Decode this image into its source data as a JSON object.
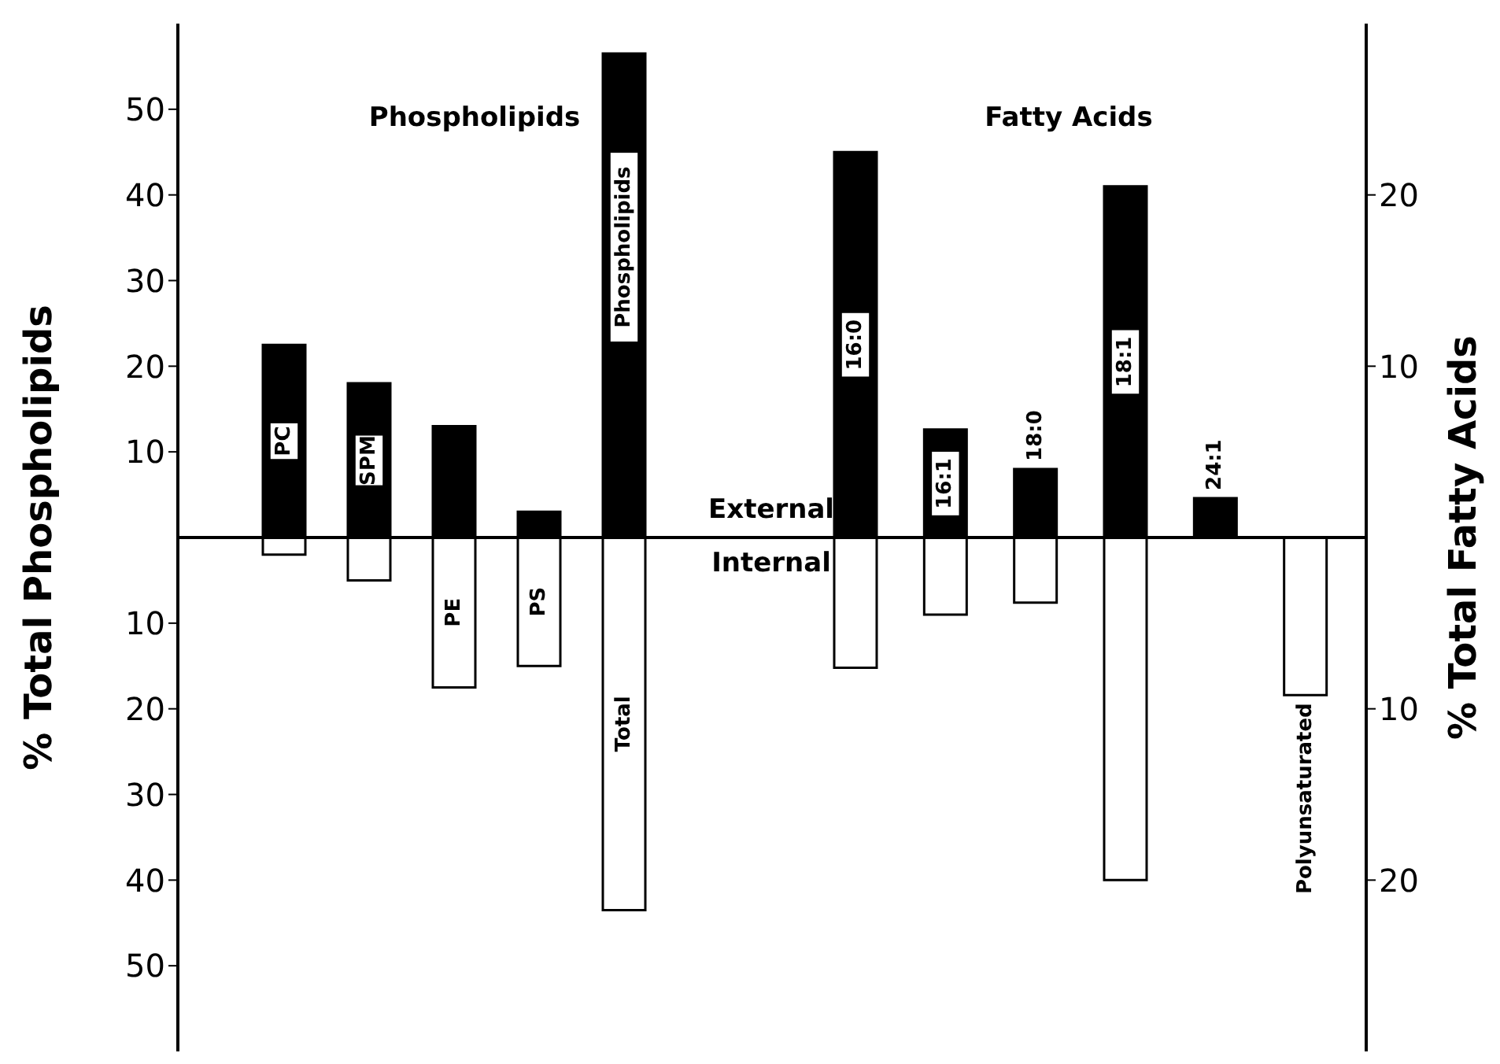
{
  "chart_data": [
    {
      "type": "bar",
      "title": "Phospholipids",
      "ylabel": "% Total Phospholipids",
      "categories": [
        "PC",
        "SPM",
        "PE",
        "PS",
        "Total"
      ],
      "stacked": true,
      "ylim": [
        -60,
        60
      ],
      "yticks": [
        {
          "value": -50,
          "label": "50"
        },
        {
          "value": -40,
          "label": "40"
        },
        {
          "value": -30,
          "label": "30"
        },
        {
          "value": -20,
          "label": "20"
        },
        {
          "value": -10,
          "label": "10"
        },
        10,
        20,
        30,
        40,
        50
      ],
      "series": [
        {
          "name": "External",
          "color": "#000000",
          "values": [
            22.5,
            18,
            13,
            3,
            56.5
          ]
        },
        {
          "name": "Internal",
          "color": "#ffffff",
          "values": [
            -2,
            -5,
            -17.5,
            -15,
            -43.5
          ]
        }
      ],
      "annotations": [
        "Phospholipids"
      ],
      "ref_lines": [
        {
          "axis": "y",
          "value": 0
        }
      ]
    },
    {
      "type": "bar",
      "title": "Fatty Acids",
      "y2label": "% Total Fatty Acids",
      "categories": [
        "16:0",
        "16:1",
        "18:0",
        "18:1",
        "24:1",
        "Polyunsaturated"
      ],
      "stacked": true,
      "y2lim": [
        -30,
        30
      ],
      "y2ticks": [
        {
          "value": -20,
          "label": "20"
        },
        {
          "value": -10,
          "label": "10"
        },
        10,
        20
      ],
      "series": [
        {
          "color": "#000000",
          "axis": "y2",
          "values": [
            22.5,
            6.3,
            4,
            20.5,
            2.3,
            null
          ]
        },
        {
          "color": "#ffffff",
          "axis": "y2",
          "values": [
            -7.6,
            -4.5,
            -3.8,
            -20,
            null,
            -9.2
          ]
        }
      ],
      "ref_lines": [
        {
          "axis": "y2",
          "value": 0
        }
      ]
    }
  ]
}
